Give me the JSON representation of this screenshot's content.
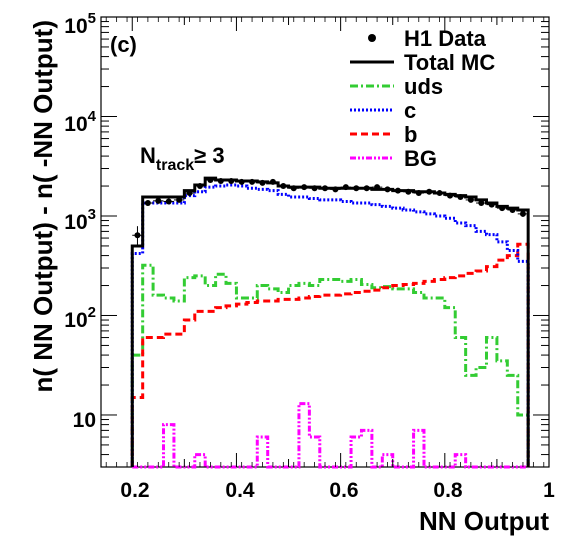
{
  "chart_data": {
    "type": "line",
    "panel_label": "(c)",
    "xlabel": "NN Output",
    "ylabel": "n( NN Output) - n( -NN Output)",
    "xlim": [
      0.14,
      1.0
    ],
    "ylim": [
      3,
      100000
    ],
    "yscale": "log",
    "x_ticks": [
      0.2,
      0.4,
      0.6,
      0.8,
      1
    ],
    "x_tick_labels": [
      "0.2",
      "0.4",
      "0.6",
      "0.8",
      "1"
    ],
    "y_tick_labels": {
      "t1": {
        "value": 10,
        "label": "10"
      },
      "t2": {
        "value": 100,
        "base": "10",
        "exp": "2"
      },
      "t3": {
        "value": 1000,
        "base": "10",
        "exp": "3"
      },
      "t4": {
        "value": 10000,
        "base": "10",
        "exp": "4"
      },
      "t5": {
        "value": 100000,
        "base": "10",
        "exp": "5"
      }
    },
    "annotation": {
      "n": "N",
      "sub": "track",
      "rel": "≥ 3"
    },
    "legend_position": "top-right",
    "colors": {
      "data": "#000000",
      "total_mc": "#000000",
      "uds": "#33cc33",
      "c": "#0000ff",
      "b": "#ff0000",
      "bg": "#ff00ff"
    },
    "bin_edges": [
      0.2,
      0.22,
      0.24,
      0.26,
      0.28,
      0.3,
      0.32,
      0.34,
      0.36,
      0.38,
      0.4,
      0.42,
      0.44,
      0.46,
      0.48,
      0.5,
      0.52,
      0.54,
      0.56,
      0.58,
      0.6,
      0.62,
      0.64,
      0.66,
      0.68,
      0.7,
      0.72,
      0.74,
      0.76,
      0.78,
      0.8,
      0.82,
      0.84,
      0.86,
      0.88,
      0.9,
      0.92,
      0.94,
      0.96
    ],
    "series": [
      {
        "name": "H1 Data",
        "style": "points",
        "x": [
          0.21,
          0.23,
          0.25,
          0.27,
          0.29,
          0.31,
          0.33,
          0.35,
          0.37,
          0.39,
          0.41,
          0.43,
          0.45,
          0.47,
          0.49,
          0.51,
          0.53,
          0.55,
          0.57,
          0.59,
          0.61,
          0.63,
          0.65,
          0.67,
          0.69,
          0.71,
          0.73,
          0.75,
          0.77,
          0.79,
          0.81,
          0.83,
          0.85,
          0.87,
          0.89,
          0.91,
          0.93,
          0.95
        ],
        "values": [
          640,
          1350,
          1420,
          1400,
          1450,
          1700,
          2000,
          2300,
          2250,
          2250,
          2200,
          2200,
          2150,
          2200,
          2000,
          1900,
          1950,
          1900,
          1900,
          1850,
          1950,
          1900,
          1900,
          1950,
          1850,
          1800,
          1750,
          1700,
          1750,
          1700,
          1600,
          1550,
          1450,
          1350,
          1300,
          1200,
          1150,
          1050
        ],
        "errors": [
          150,
          90,
          85,
          80,
          80,
          90,
          95,
          100,
          100,
          100,
          100,
          100,
          100,
          100,
          95,
          90,
          95,
          90,
          90,
          90,
          95,
          90,
          90,
          95,
          90,
          90,
          90,
          85,
          90,
          85,
          85,
          85,
          80,
          80,
          75,
          75,
          75,
          70
        ]
      },
      {
        "name": "Total MC",
        "style": "hist-solid",
        "values": [
          500,
          1550,
          1550,
          1550,
          1550,
          1800,
          2050,
          2400,
          2300,
          2300,
          2250,
          2250,
          2200,
          2150,
          2000,
          1950,
          1950,
          1950,
          1900,
          1900,
          1900,
          1900,
          1900,
          1850,
          1850,
          1800,
          1800,
          1750,
          1750,
          1700,
          1650,
          1600,
          1550,
          1450,
          1350,
          1250,
          1200,
          1150
        ]
      },
      {
        "name": "uds",
        "style": "hist-dashdot",
        "values": [
          40,
          320,
          160,
          150,
          140,
          240,
          250,
          200,
          260,
          210,
          150,
          150,
          200,
          185,
          170,
          200,
          210,
          200,
          230,
          230,
          220,
          230,
          205,
          190,
          195,
          185,
          185,
          170,
          150,
          150,
          120,
          60,
          25,
          30,
          60,
          35,
          25,
          10
        ]
      },
      {
        "name": "c",
        "style": "hist-dotted",
        "values": [
          420,
          1350,
          1350,
          1350,
          1350,
          1600,
          1750,
          1950,
          2000,
          2050,
          2000,
          1900,
          1850,
          1800,
          1650,
          1550,
          1550,
          1500,
          1450,
          1450,
          1400,
          1350,
          1350,
          1300,
          1250,
          1200,
          1150,
          1100,
          1050,
          1000,
          950,
          850,
          800,
          700,
          650,
          550,
          450,
          350
        ]
      },
      {
        "name": "b",
        "style": "hist-dashed",
        "values": [
          15,
          60,
          60,
          65,
          65,
          90,
          110,
          110,
          120,
          125,
          130,
          135,
          140,
          140,
          145,
          145,
          150,
          155,
          160,
          160,
          165,
          170,
          175,
          180,
          190,
          200,
          205,
          210,
          220,
          230,
          240,
          250,
          265,
          280,
          310,
          360,
          400,
          520
        ]
      },
      {
        "name": "BG",
        "style": "hist-dashdotdot",
        "values": [
          3,
          3,
          3,
          8,
          3,
          3,
          4,
          3,
          3,
          3,
          3,
          3,
          6,
          3,
          3,
          3,
          13,
          6,
          3,
          3,
          3,
          6,
          7,
          3,
          4,
          3,
          3,
          7,
          3,
          3,
          3,
          4,
          3,
          3,
          3,
          3,
          3,
          3
        ]
      }
    ]
  }
}
